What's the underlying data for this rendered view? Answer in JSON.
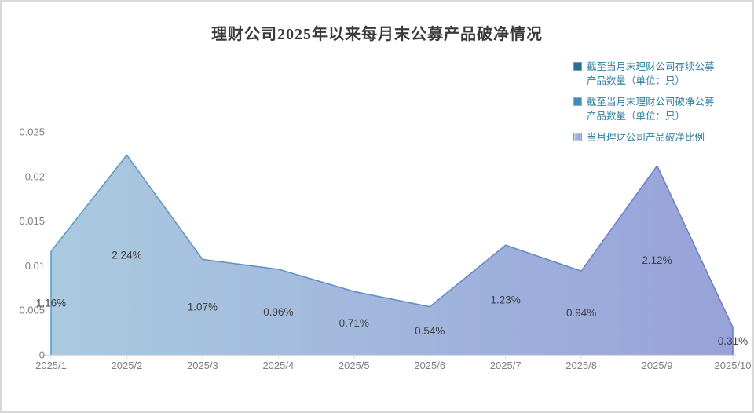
{
  "title": "理财公司2025年以来每月末公募产品破净情况",
  "legend": {
    "text_color": "#2e7fa0",
    "items": [
      {
        "label": "截至当月末理财公司存续公募产品数量（单位：只）",
        "lines": [
          "截至当月末理财公司存续公募",
          "产品数量（单位：只）"
        ],
        "swatch": {
          "type": "solid",
          "color": "#2f6d8f"
        }
      },
      {
        "label": "截至当月末理财公司破净公募产品数量（单位：只）",
        "lines": [
          "截至当月末理财公司破净公募",
          "产品数量（单位：只）"
        ],
        "swatch": {
          "type": "solid",
          "color": "#3f8cb4"
        }
      },
      {
        "label": "当月理财公司产品破净比例",
        "lines": [
          "当月理财公司产品破净比例"
        ],
        "swatch": {
          "type": "gradient",
          "from": "#a9c9e2",
          "to": "#8e9ad8",
          "border": "#7fa0c8"
        }
      }
    ]
  },
  "chart_data": {
    "type": "area",
    "title": "理财公司2025年以来每月末公募产品破净情况",
    "categories": [
      "2025/1",
      "2025/2",
      "2025/3",
      "2025/4",
      "2025/5",
      "2025/6",
      "2025/7",
      "2025/8",
      "2025/9",
      "2025/10"
    ],
    "series": [
      {
        "name": "当月理财公司产品破净比例",
        "values": [
          0.0116,
          0.0224,
          0.0107,
          0.0096,
          0.0071,
          0.0054,
          0.0123,
          0.0094,
          0.0212,
          0.0031
        ],
        "labels": [
          "1.16%",
          "2.24%",
          "1.07%",
          "0.96%",
          "0.71%",
          "0.54%",
          "1.23%",
          "0.94%",
          "2.12%",
          "0.31%"
        ]
      }
    ],
    "ylim": [
      0,
      0.025
    ],
    "yticks": [
      0,
      0.005,
      0.01,
      0.015,
      0.02,
      0.025
    ],
    "ytick_labels": [
      "0",
      "0.005",
      "0.01",
      "0.015",
      "0.02",
      "0.025"
    ],
    "grid": false,
    "legend_position": "top-right",
    "colors": {
      "fill_start": "#aacadf",
      "fill_end": "#98a2da",
      "stroke_start": "#5f9cc6",
      "stroke_end": "#6f7ec6",
      "axis_line": "#d9d9d9",
      "tick_label": "#7f7f7f",
      "data_label": "#3f3f3f"
    }
  }
}
